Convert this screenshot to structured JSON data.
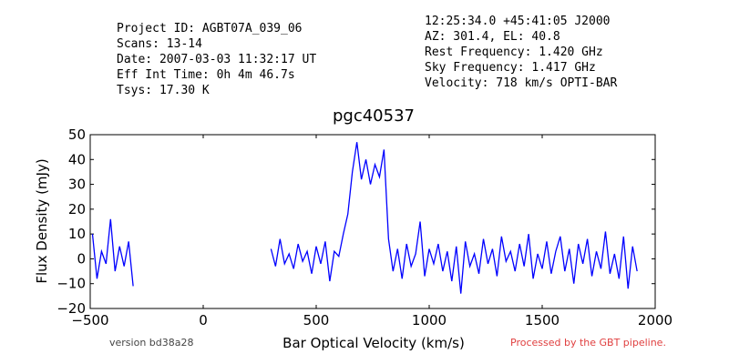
{
  "chart_data": {
    "type": "line",
    "title": "pgc40537",
    "xlabel": "Bar Optical Velocity (km/s)",
    "ylabel": "Flux Density (mJy)",
    "info_left": [
      "Project ID: AGBT07A_039_06",
      "Scans: 13-14",
      "Date: 2007-03-03 11:32:17 UT",
      "Eff Int Time: 0h 4m 46.7s",
      "Tsys: 17.30 K"
    ],
    "info_right": [
      "12:25:34.0 +45:41:05 J2000",
      "AZ: 301.4, EL: 40.8",
      "Rest Frequency:   1.420 GHz",
      "Sky Frequency:    1.417 GHz",
      "Velocity: 718 km/s OPTI-BAR"
    ],
    "footer_left": "version bd38a28",
    "footer_right": "Processed by the GBT pipeline.",
    "xlim": [
      -500,
      2000
    ],
    "xticks": [
      {
        "value": -500,
        "label": "−500"
      },
      0,
      500,
      1000,
      1500,
      2000
    ],
    "ylim": [
      -20,
      50
    ],
    "yticks": [
      {
        "value": -20,
        "label": "−20"
      },
      {
        "value": -10,
        "label": "−10"
      },
      0,
      10,
      20,
      30,
      40,
      50
    ],
    "grid": false,
    "x": [
      -490,
      -470,
      -450,
      -430,
      -410,
      -390,
      -370,
      -350,
      -330,
      -310,
      0,
      300,
      320,
      340,
      360,
      380,
      400,
      420,
      440,
      460,
      480,
      500,
      520,
      540,
      560,
      580,
      600,
      620,
      640,
      660,
      680,
      700,
      720,
      740,
      760,
      780,
      800,
      820,
      840,
      860,
      880,
      900,
      920,
      940,
      960,
      980,
      1000,
      1020,
      1040,
      1060,
      1080,
      1100,
      1120,
      1140,
      1160,
      1180,
      1200,
      1220,
      1240,
      1260,
      1280,
      1300,
      1320,
      1340,
      1360,
      1380,
      1400,
      1420,
      1440,
      1460,
      1480,
      1500,
      1520,
      1540,
      1560,
      1580,
      1600,
      1620,
      1640,
      1660,
      1680,
      1700,
      1720,
      1740,
      1760,
      1780,
      1800,
      1820,
      1840,
      1860,
      1880,
      1900,
      1920
    ],
    "series": [
      {
        "name": "pgc40537",
        "color": "#0000ff",
        "values": [
          10,
          -8,
          3,
          -2,
          16,
          -5,
          5,
          -3,
          7,
          -11,
          null,
          4,
          -3,
          8,
          -2,
          2,
          -4,
          6,
          -1,
          3,
          -6,
          5,
          -2,
          7,
          -9,
          3,
          1,
          10,
          18,
          35,
          47,
          32,
          40,
          30,
          38,
          33,
          44,
          8,
          -5,
          4,
          -8,
          6,
          -3,
          2,
          15,
          -7,
          4,
          -2,
          6,
          -5,
          3,
          -9,
          5,
          -14,
          7,
          -3,
          2,
          -6,
          8,
          -2,
          4,
          -7,
          9,
          -1,
          3,
          -5,
          6,
          -3,
          10,
          -8,
          2,
          -4,
          7,
          -6,
          3,
          9,
          -5,
          4,
          -10,
          6,
          -2,
          8,
          -7,
          3,
          -4,
          11,
          -6,
          2,
          -8,
          9,
          -12,
          5,
          -5
        ]
      }
    ]
  }
}
